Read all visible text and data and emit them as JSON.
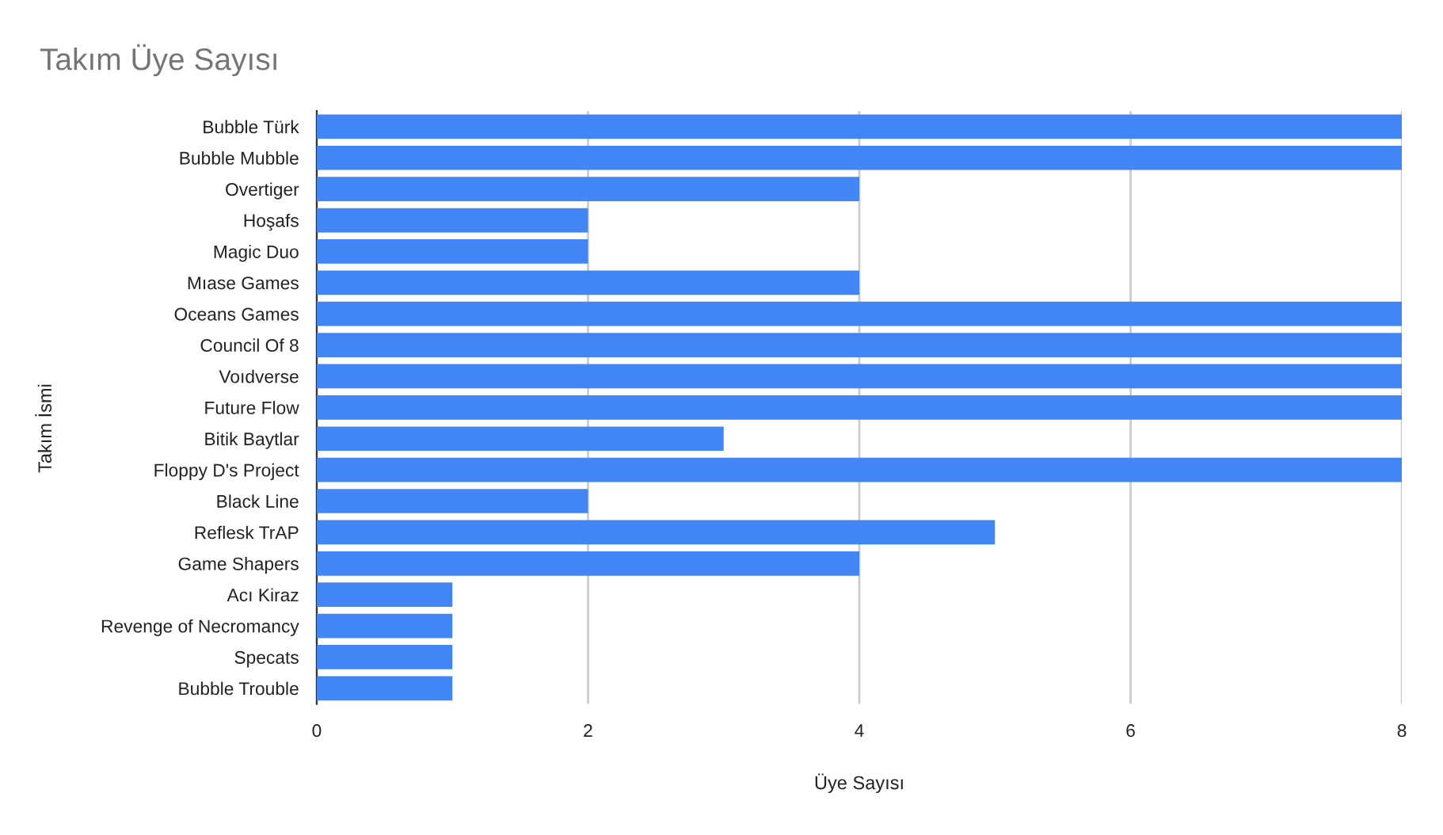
{
  "chart_data": {
    "type": "bar",
    "orientation": "horizontal",
    "title": "Takım Üye Sayısı",
    "xlabel": "Üye Sayısı",
    "ylabel": "Takım İsmi",
    "categories": [
      "Bubble Türk",
      "Bubble Mubble",
      "Overtiger",
      "Hoşafs",
      "Magic Duo",
      "Mıase Games",
      "Oceans Games",
      "Council Of 8",
      "Voıdverse",
      "Future Flow",
      "Bitik Baytlar",
      "Floppy D's Project",
      "Black Line",
      "Reflesk TrAP",
      "Game Shapers",
      "Acı Kiraz",
      "Revenge of Necromancy",
      "Specats",
      "Bubble Trouble"
    ],
    "values": [
      8,
      8,
      4,
      2,
      2,
      4,
      8,
      8,
      8,
      8,
      3,
      8,
      2,
      5,
      4,
      1,
      1,
      1,
      1
    ],
    "color": "#4285f4",
    "xlim": [
      0,
      8
    ],
    "xticks": [
      0,
      2,
      4,
      6,
      8
    ],
    "grid": "x",
    "legend": false
  }
}
